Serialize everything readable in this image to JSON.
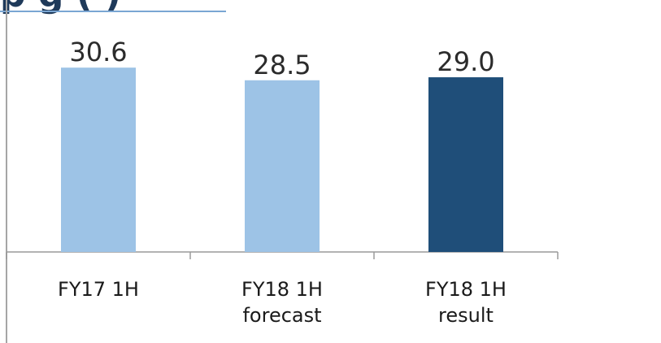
{
  "title": "p                          g                (              )",
  "chart_data": {
    "type": "bar",
    "categories": [
      "FY17 1H",
      "FY18 1H",
      "FY18 1H"
    ],
    "category_sublabels": [
      "",
      "forecast",
      "result"
    ],
    "values": [
      30.6,
      28.5,
      29.0
    ],
    "value_labels": [
      "30.6",
      "28.5",
      "29.0"
    ],
    "bar_colors": [
      "#9dc3e6",
      "#9dc3e6",
      "#1f4e79"
    ],
    "ylim": [
      0,
      34
    ],
    "grid": false,
    "legend": "none",
    "xlabel": "",
    "ylabel": ""
  }
}
